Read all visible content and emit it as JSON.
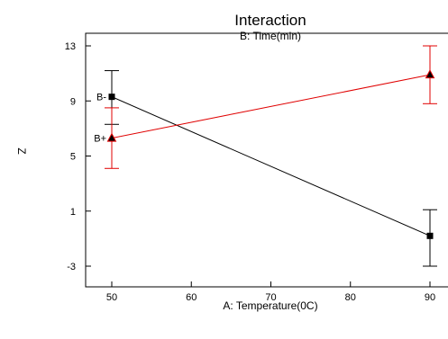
{
  "chart_data": {
    "type": "line",
    "title": "Interaction",
    "subtitle": "B: Time(min)",
    "xlabel": "A: Temperature(0C)",
    "ylabel": "Z",
    "xlim": [
      45,
      95
    ],
    "ylim": [
      -5,
      14
    ],
    "x_ticks": [
      50,
      60,
      70,
      80,
      90
    ],
    "y_ticks": [
      -3,
      1,
      5,
      9,
      13
    ],
    "x_tick_labels": [
      "50",
      "60",
      "70",
      "80",
      "90"
    ],
    "y_tick_labels": [
      "-3",
      "1",
      "5",
      "9",
      "13"
    ],
    "grid": false,
    "series": [
      {
        "name": "B-",
        "color": "#000000",
        "marker": "square",
        "points": [
          {
            "x": 50,
            "y": 9.3,
            "err_low": 7.3,
            "err_high": 11.2
          },
          {
            "x": 90,
            "y": -0.8,
            "err_low": -3.0,
            "err_high": 1.1
          }
        ]
      },
      {
        "name": "B+",
        "color": "#e00000",
        "marker": "triangle",
        "points": [
          {
            "x": 50,
            "y": 6.3,
            "err_low": 4.1,
            "err_high": 8.5
          },
          {
            "x": 90,
            "y": 10.9,
            "err_low": 8.8,
            "err_high": 13.0
          }
        ]
      }
    ]
  }
}
